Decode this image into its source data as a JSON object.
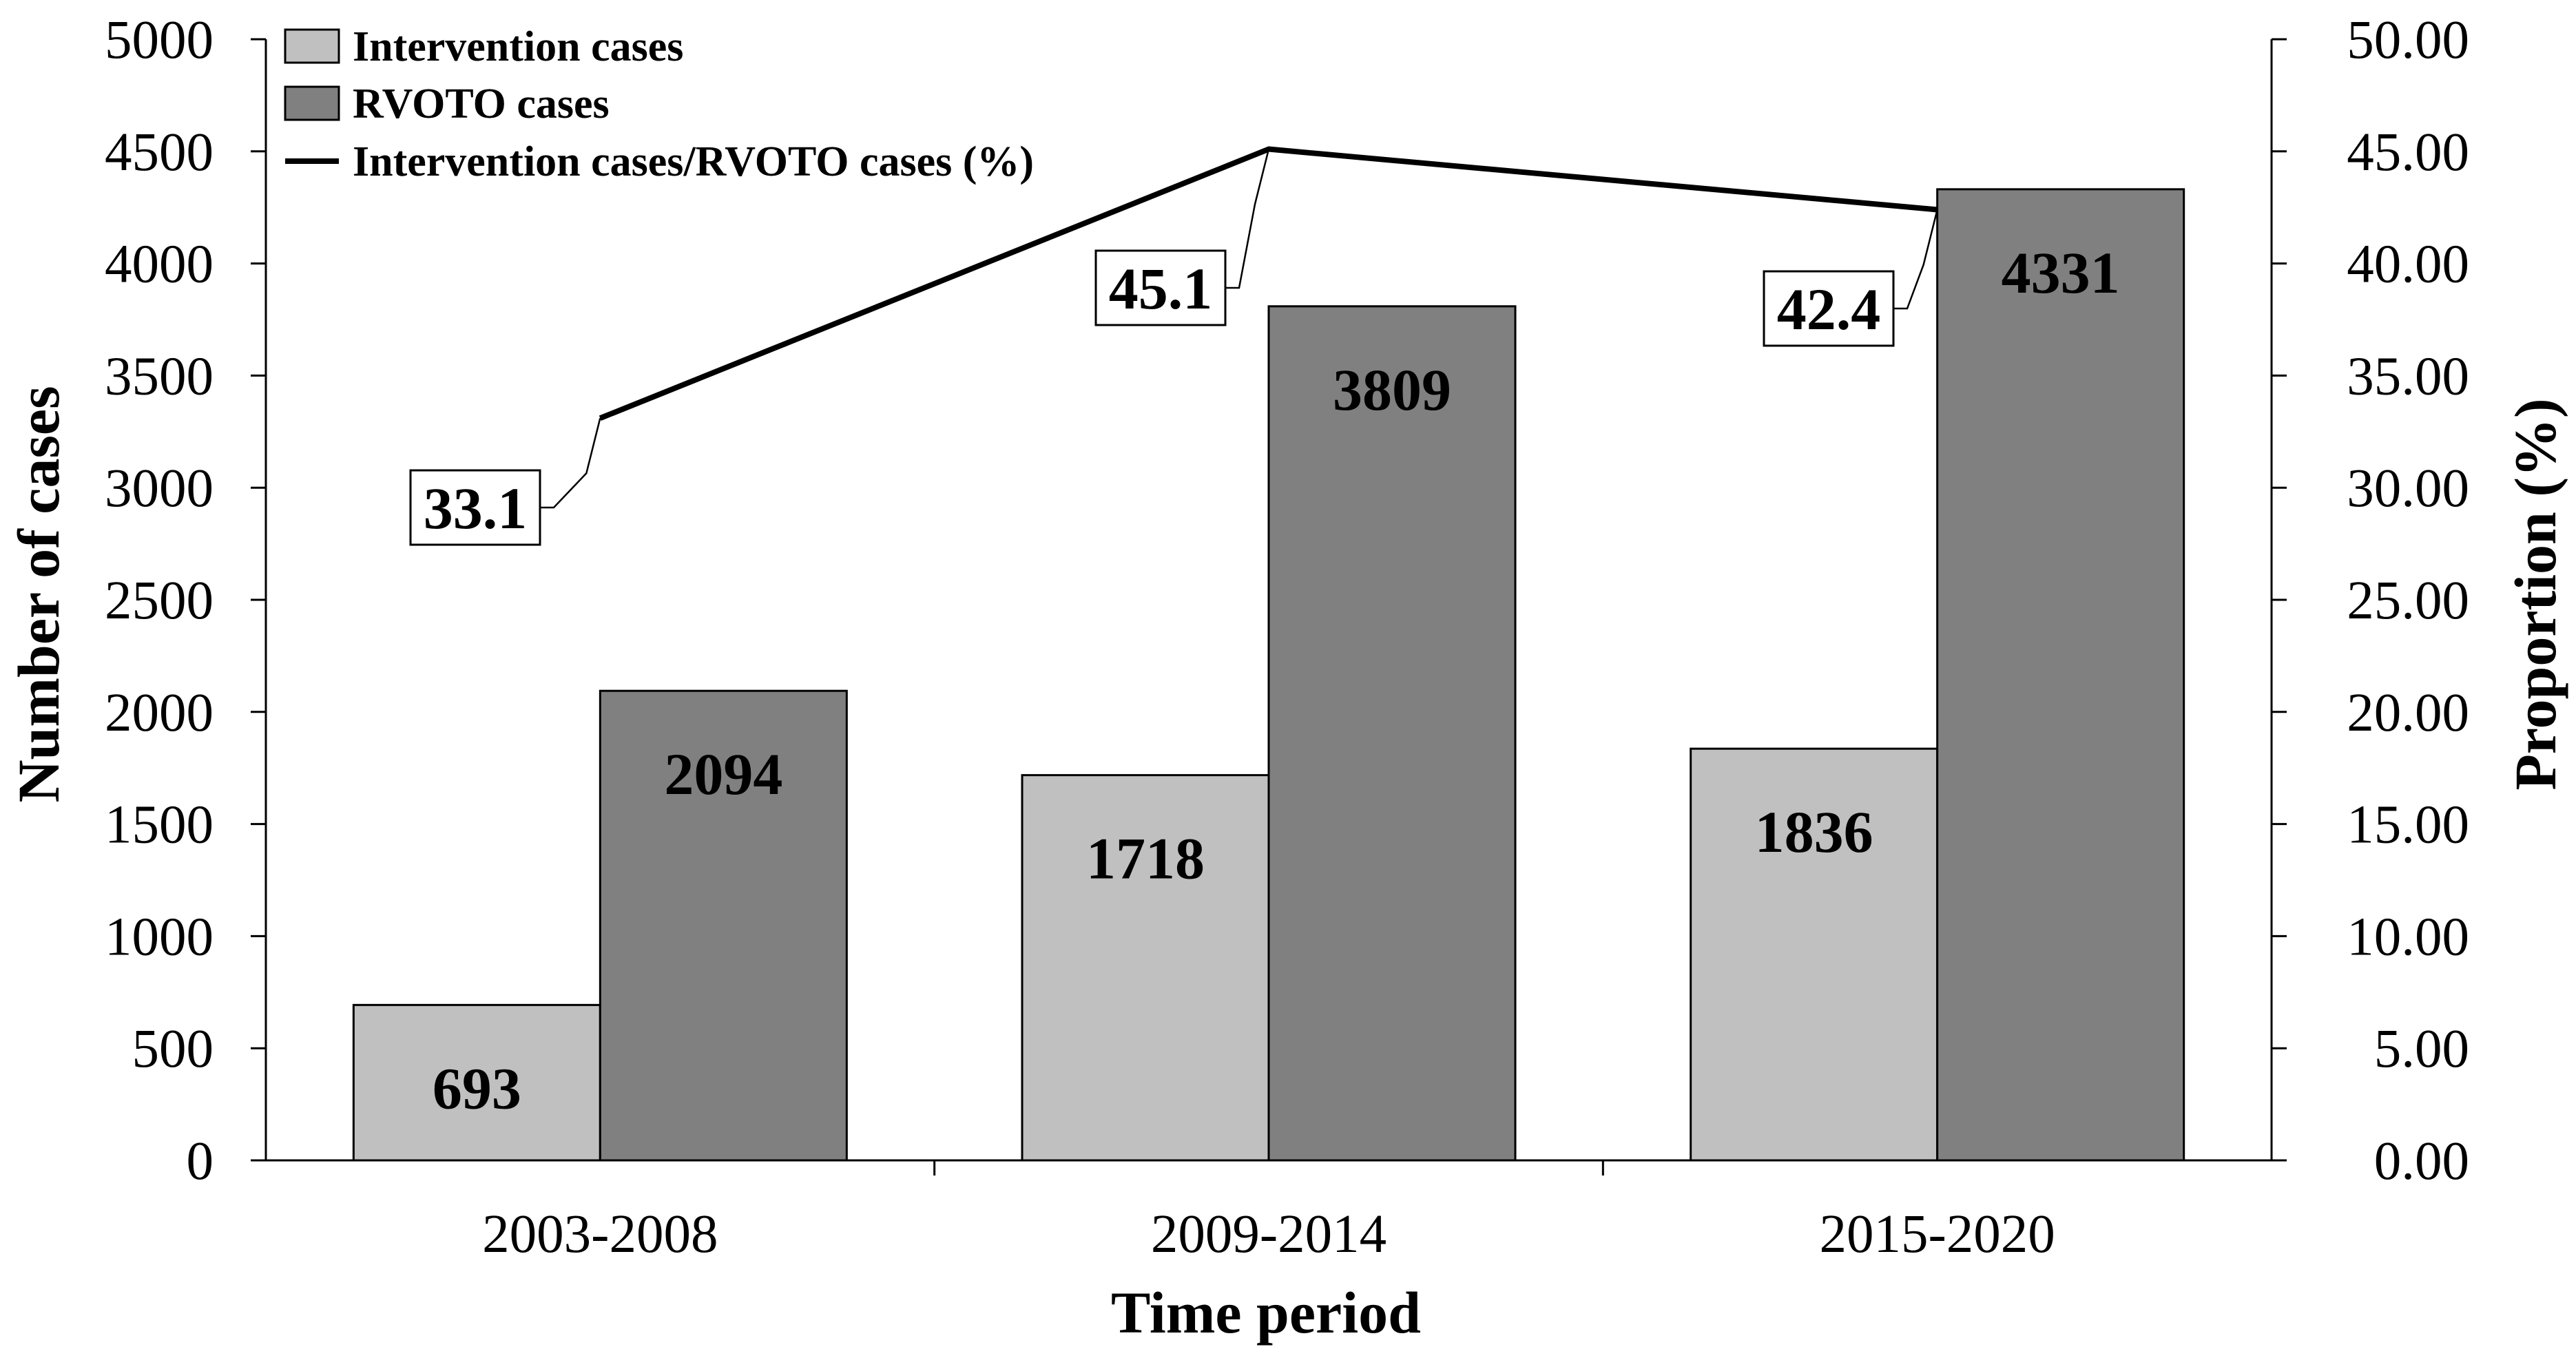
{
  "chart_data": {
    "type": "bar",
    "title": "",
    "xlabel": "Time period",
    "ylabel": "Number of cases",
    "y2label": "Proportion (%)",
    "categories": [
      "2003-2008",
      "2009-2014",
      "2015-2020"
    ],
    "ylim": [
      0,
      5000
    ],
    "y_ticks": [
      "0",
      "500",
      "1000",
      "1500",
      "2000",
      "2500",
      "3000",
      "3500",
      "4000",
      "4500",
      "5000"
    ],
    "y2lim": [
      0,
      50
    ],
    "y2_ticks": [
      "0.00",
      "5.00",
      "10.00",
      "15.00",
      "20.00",
      "25.00",
      "30.00",
      "35.00",
      "40.00",
      "45.00",
      "50.00"
    ],
    "series": [
      {
        "name": "Intervention cases",
        "kind": "bar",
        "axis": "left",
        "color": "#c0c0c0",
        "values": [
          693,
          1718,
          1836
        ],
        "labels": [
          "693",
          "1718",
          "1836"
        ]
      },
      {
        "name": "RVOTO cases",
        "kind": "bar",
        "axis": "left",
        "color": "#808080",
        "values": [
          2094,
          3809,
          4331
        ],
        "labels": [
          "2094",
          "3809",
          "4331"
        ]
      },
      {
        "name": "Intervention cases/RVOTO cases (%)",
        "kind": "line",
        "axis": "right",
        "color": "#000000",
        "values": [
          33.1,
          45.1,
          42.4
        ],
        "labels": [
          "33.1",
          "45.1",
          "42.4"
        ]
      }
    ],
    "legend_position": "top-left"
  }
}
